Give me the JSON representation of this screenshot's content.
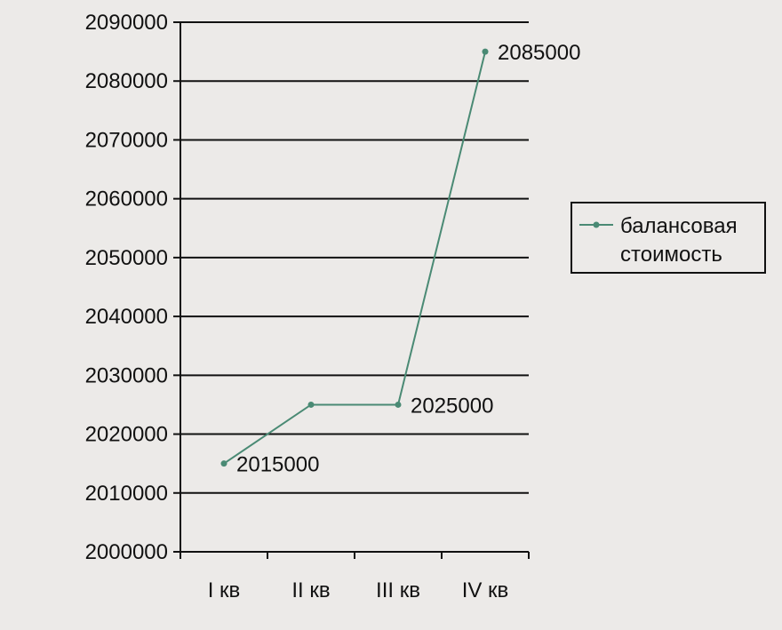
{
  "chart_data": {
    "type": "line",
    "title": "",
    "xlabel": "",
    "ylabel": "",
    "categories": [
      "I кв",
      "II кв",
      "III кв",
      "IV кв"
    ],
    "series": [
      {
        "name": "балансовая стоимость",
        "values": [
          2015000,
          2025000,
          2025000,
          2085000
        ],
        "color": "#4a8a74"
      }
    ],
    "data_labels": [
      {
        "index": 0,
        "text": "2015000"
      },
      {
        "index": 2,
        "text": "2025000"
      },
      {
        "index": 3,
        "text": "2085000"
      }
    ],
    "ylim": [
      2000000,
      2090000
    ],
    "yticks": [
      "2000000",
      "2010000",
      "2020000",
      "2030000",
      "2040000",
      "2050000",
      "2060000",
      "2070000",
      "2080000",
      "2090000"
    ],
    "grid": true,
    "legend_position": "right",
    "legend_lines": [
      "балансовая",
      "стоимость"
    ]
  }
}
